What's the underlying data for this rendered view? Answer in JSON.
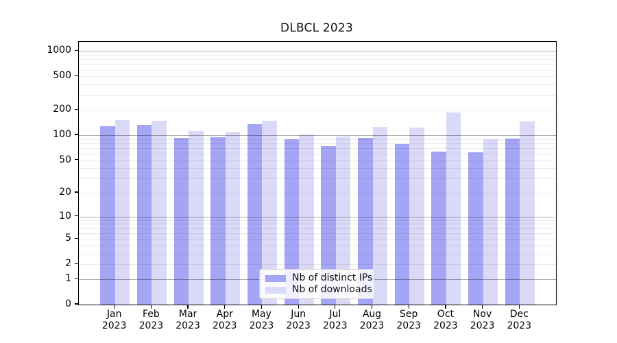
{
  "chart_data": {
    "type": "bar",
    "title": "DLBCL 2023",
    "xlabel": "",
    "ylabel": "",
    "y_scale": "log10(1+v)",
    "y_top": 1282,
    "ylim": [
      0,
      1282
    ],
    "grid": "on",
    "legend_position": "lower center",
    "yticks": [
      0,
      1,
      2,
      5,
      10,
      20,
      50,
      100,
      200,
      500,
      1000
    ],
    "major_grid_values": [
      1,
      10,
      100,
      1000
    ],
    "categories": [
      {
        "month": "Jan",
        "year": "2023"
      },
      {
        "month": "Feb",
        "year": "2023"
      },
      {
        "month": "Mar",
        "year": "2023"
      },
      {
        "month": "Apr",
        "year": "2023"
      },
      {
        "month": "May",
        "year": "2023"
      },
      {
        "month": "Jun",
        "year": "2023"
      },
      {
        "month": "Jul",
        "year": "2023"
      },
      {
        "month": "Aug",
        "year": "2023"
      },
      {
        "month": "Sep",
        "year": "2023"
      },
      {
        "month": "Oct",
        "year": "2023"
      },
      {
        "month": "Nov",
        "year": "2023"
      },
      {
        "month": "Dec",
        "year": "2023"
      }
    ],
    "series": [
      {
        "name": "Nb of distinct IPs",
        "color": "#a5a5f5",
        "values": [
          129,
          134,
          92,
          95,
          136,
          90,
          74,
          92,
          79,
          64,
          62,
          91
        ]
      },
      {
        "name": "Nb of downloads",
        "color": "#dadaf8",
        "values": [
          151,
          148,
          113,
          111,
          150,
          102,
          97,
          126,
          124,
          187,
          89,
          145
        ]
      }
    ]
  }
}
